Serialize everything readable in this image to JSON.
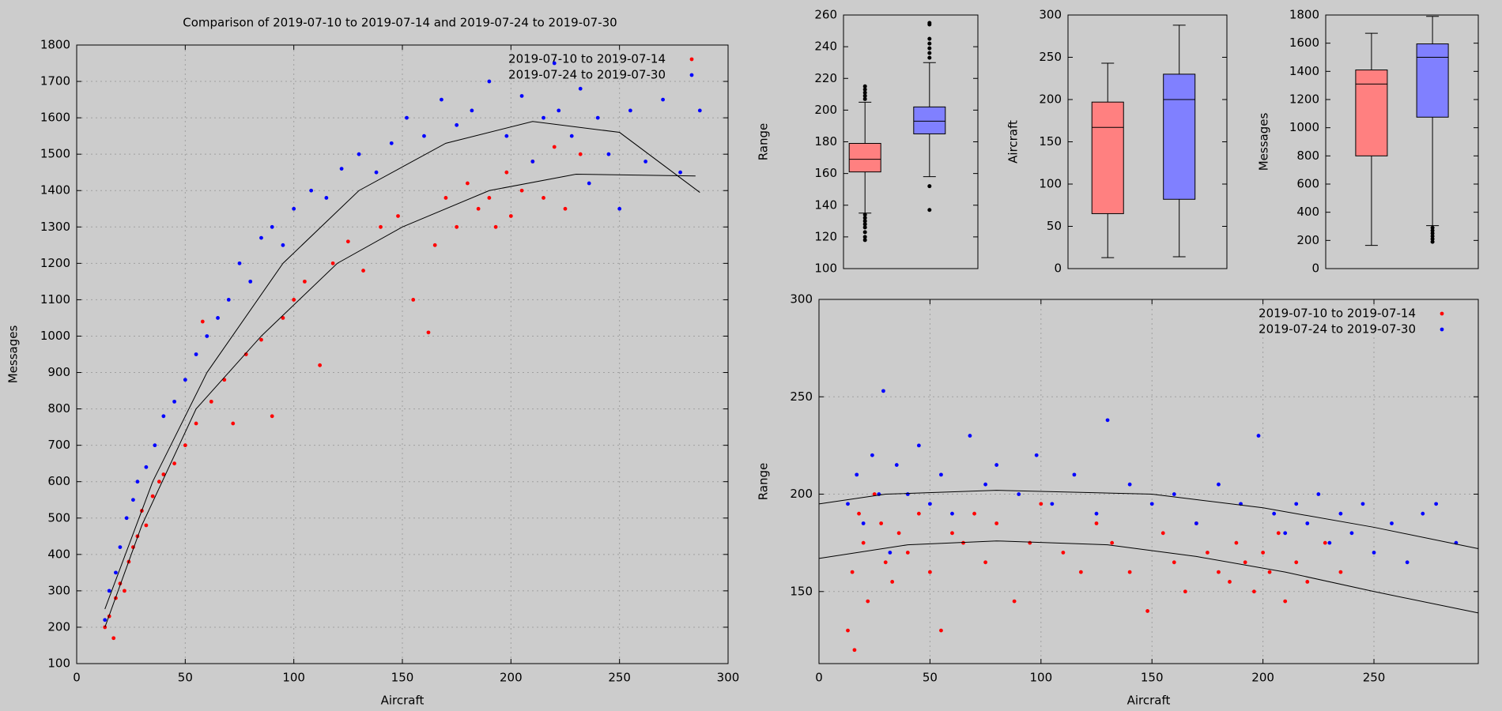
{
  "chart_data": [
    {
      "type": "scatter",
      "title": "Comparison of 2019-07-10 to 2019-07-14 and 2019-07-24 to 2019-07-30",
      "xlabel": "Aircraft",
      "ylabel": "Messages",
      "grid": true,
      "legend": "top-right",
      "xlim": [
        0,
        300
      ],
      "xticks": [
        0,
        50,
        100,
        150,
        200,
        250,
        300
      ],
      "ylim": [
        100,
        1800
      ],
      "yticks": [
        100,
        200,
        300,
        400,
        500,
        600,
        700,
        800,
        900,
        1000,
        1100,
        1200,
        1300,
        1400,
        1500,
        1600,
        1700,
        1800
      ],
      "series": [
        {
          "name": "2019-07-10 to 2019-07-14",
          "color": "#ff0000",
          "x": [
            13,
            15,
            17,
            18,
            20,
            22,
            24,
            26,
            28,
            30,
            32,
            35,
            38,
            40,
            45,
            50,
            55,
            58,
            62,
            68,
            72,
            78,
            85,
            90,
            95,
            100,
            105,
            112,
            118,
            125,
            132,
            140,
            148,
            155,
            162,
            165,
            170,
            175,
            180,
            185,
            190,
            193,
            198,
            200,
            205,
            210,
            215,
            220,
            225,
            232
          ],
          "values": [
            200,
            230,
            170,
            280,
            320,
            300,
            380,
            420,
            450,
            520,
            480,
            560,
            600,
            620,
            650,
            700,
            760,
            1040,
            820,
            880,
            760,
            950,
            990,
            780,
            1050,
            1100,
            1150,
            920,
            1200,
            1260,
            1180,
            1300,
            1330,
            1100,
            1010,
            1250,
            1380,
            1300,
            1420,
            1350,
            1380,
            1300,
            1450,
            1330,
            1400,
            1480,
            1380,
            1520,
            1350,
            1500
          ]
        },
        {
          "name": "2019-07-24 to 2019-07-30",
          "color": "#0000ff",
          "x": [
            13,
            15,
            18,
            20,
            23,
            26,
            28,
            32,
            36,
            40,
            45,
            50,
            55,
            60,
            65,
            70,
            75,
            80,
            85,
            90,
            95,
            100,
            108,
            115,
            122,
            130,
            138,
            145,
            152,
            160,
            168,
            175,
            182,
            190,
            198,
            205,
            210,
            215,
            220,
            222,
            228,
            232,
            236,
            240,
            245,
            250,
            255,
            262,
            270,
            278,
            287
          ],
          "values": [
            220,
            300,
            350,
            420,
            500,
            550,
            600,
            640,
            700,
            780,
            820,
            880,
            950,
            1000,
            1050,
            1100,
            1200,
            1150,
            1270,
            1300,
            1250,
            1350,
            1400,
            1380,
            1460,
            1500,
            1450,
            1530,
            1600,
            1550,
            1650,
            1580,
            1620,
            1700,
            1550,
            1660,
            1480,
            1600,
            1750,
            1620,
            1550,
            1680,
            1420,
            1600,
            1500,
            1350,
            1620,
            1480,
            1650,
            1450,
            1620
          ]
        }
      ],
      "fits": [
        {
          "x": [
            13,
            30,
            55,
            85,
            120,
            150,
            190,
            230,
            285
          ],
          "values": [
            200,
            480,
            800,
            1000,
            1200,
            1300,
            1400,
            1445,
            1440
          ]
        },
        {
          "x": [
            13,
            35,
            60,
            95,
            130,
            170,
            210,
            250,
            287
          ],
          "values": [
            250,
            600,
            900,
            1200,
            1400,
            1530,
            1590,
            1560,
            1395
          ]
        }
      ]
    },
    {
      "type": "box",
      "ylabel": "Range",
      "ylim": [
        100,
        260
      ],
      "yticks": [
        100,
        120,
        140,
        160,
        180,
        200,
        220,
        240,
        260
      ],
      "boxes": [
        {
          "color": "#ff8080",
          "low": 135,
          "q1": 161,
          "median": 169,
          "q3": 179,
          "high": 205,
          "outliers": [
            118,
            120,
            123,
            126,
            128,
            130,
            132,
            134,
            207,
            209,
            211,
            213,
            215
          ]
        },
        {
          "color": "#8080ff",
          "low": 158,
          "q1": 185,
          "median": 193,
          "q3": 202,
          "high": 230,
          "outliers": [
            137,
            152,
            233,
            236,
            239,
            242,
            245,
            254,
            255
          ]
        }
      ]
    },
    {
      "type": "box",
      "ylabel": "Aircraft",
      "ylim": [
        0,
        300
      ],
      "yticks": [
        0,
        50,
        100,
        150,
        200,
        250,
        300
      ],
      "boxes": [
        {
          "color": "#ff8080",
          "low": 13,
          "q1": 65,
          "median": 167,
          "q3": 197,
          "high": 243,
          "outliers": []
        },
        {
          "color": "#8080ff",
          "low": 14,
          "q1": 82,
          "median": 200,
          "q3": 230,
          "high": 288,
          "outliers": []
        }
      ]
    },
    {
      "type": "box",
      "ylabel": "Messages",
      "ylim": [
        0,
        1800
      ],
      "yticks": [
        0,
        200,
        400,
        600,
        800,
        1000,
        1200,
        1400,
        1600,
        1800
      ],
      "boxes": [
        {
          "color": "#ff8080",
          "low": 165,
          "q1": 800,
          "median": 1310,
          "q3": 1410,
          "high": 1670,
          "outliers": []
        },
        {
          "color": "#8080ff",
          "low": 305,
          "q1": 1075,
          "median": 1500,
          "q3": 1595,
          "high": 1790,
          "outliers": [
            190,
            210,
            230,
            250,
            270,
            290
          ]
        }
      ]
    },
    {
      "type": "scatter",
      "xlabel": "Aircraft",
      "ylabel": "Range",
      "grid": true,
      "legend": "top-right",
      "xlim": [
        0,
        297
      ],
      "xticks": [
        0,
        50,
        100,
        150,
        200,
        250
      ],
      "ylim": [
        113,
        300
      ],
      "yticks": [
        150,
        200,
        250,
        300
      ],
      "series": [
        {
          "name": "2019-07-10 to 2019-07-14",
          "color": "#ff0000",
          "x": [
            13,
            15,
            16,
            18,
            20,
            22,
            25,
            28,
            30,
            33,
            36,
            40,
            45,
            50,
            55,
            60,
            65,
            70,
            75,
            80,
            88,
            95,
            100,
            110,
            118,
            125,
            132,
            140,
            148,
            155,
            160,
            165,
            170,
            175,
            180,
            185,
            188,
            192,
            196,
            200,
            203,
            207,
            210,
            215,
            220,
            228,
            235
          ],
          "values": [
            130,
            160,
            120,
            190,
            175,
            145,
            200,
            185,
            165,
            155,
            180,
            170,
            190,
            160,
            130,
            180,
            175,
            190,
            165,
            185,
            145,
            175,
            195,
            170,
            160,
            185,
            175,
            160,
            140,
            180,
            165,
            150,
            185,
            170,
            160,
            155,
            175,
            165,
            150,
            170,
            160,
            180,
            145,
            165,
            155,
            175,
            160
          ]
        },
        {
          "name": "2019-07-24 to 2019-07-30",
          "color": "#0000ff",
          "x": [
            13,
            17,
            20,
            24,
            27,
            29,
            32,
            35,
            40,
            45,
            50,
            55,
            60,
            68,
            75,
            80,
            90,
            98,
            105,
            115,
            125,
            130,
            140,
            150,
            160,
            170,
            180,
            190,
            198,
            205,
            210,
            215,
            220,
            225,
            230,
            235,
            240,
            245,
            250,
            258,
            265,
            272,
            278,
            287
          ],
          "values": [
            195,
            210,
            185,
            220,
            200,
            253,
            170,
            215,
            200,
            225,
            195,
            210,
            190,
            230,
            205,
            215,
            200,
            220,
            195,
            210,
            190,
            238,
            205,
            195,
            200,
            185,
            205,
            195,
            230,
            190,
            180,
            195,
            185,
            200,
            175,
            190,
            180,
            195,
            170,
            185,
            165,
            190,
            195,
            175
          ]
        }
      ],
      "fits": [
        {
          "x": [
            0,
            40,
            80,
            130,
            170,
            210,
            250,
            297
          ],
          "values": [
            167,
            174,
            176,
            174,
            168,
            160,
            150,
            139
          ]
        },
        {
          "x": [
            0,
            30,
            80,
            150,
            200,
            250,
            297
          ],
          "values": [
            195,
            200,
            202,
            200,
            193,
            183,
            172
          ]
        }
      ]
    }
  ]
}
